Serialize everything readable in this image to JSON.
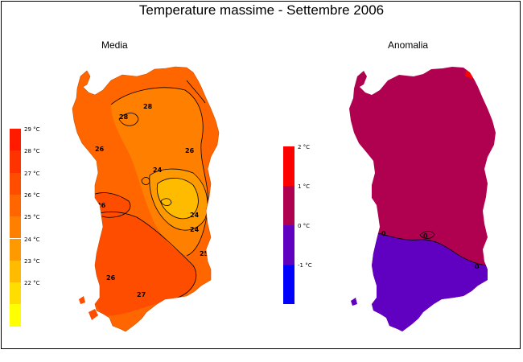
{
  "title": "Temperature massime - Settembre 2006",
  "panels": {
    "left": {
      "title": "Media"
    },
    "right": {
      "title": "Anomalia"
    }
  },
  "legend_media": [
    {
      "label": "29 °C",
      "color": "#ff1a00"
    },
    {
      "label": "28 °C",
      "color": "#ff3300"
    },
    {
      "label": "27 °C",
      "color": "#ff4d00"
    },
    {
      "label": "26 °C",
      "color": "#ff6600"
    },
    {
      "label": "25 °C",
      "color": "#ff8000"
    },
    {
      "label": "24 °C",
      "color": "#ff9900"
    },
    {
      "label": "23 °C",
      "color": "#ffbb00"
    },
    {
      "label": "22 °C",
      "color": "#ffdd00"
    },
    {
      "label": "",
      "color": "#ffff00"
    }
  ],
  "legend_anomalia": [
    {
      "label": "2 °C",
      "color": "#ff0000"
    },
    {
      "label": "1 °C",
      "color": "#b00050"
    },
    {
      "label": "0 °C",
      "color": "#6000c0"
    },
    {
      "label": "-1 °C",
      "color": "#0000ff"
    }
  ],
  "contour_labels_media": [
    "28",
    "26",
    "26",
    "26",
    "24",
    "24",
    "24",
    "25",
    "27",
    "26",
    "28"
  ],
  "contour_labels_anomalia": [
    "0",
    "0",
    "0"
  ],
  "colors": {
    "media_base": "#ff6600",
    "media_27": "#ff4d00",
    "media_25": "#ff8000",
    "media_24": "#ff9900",
    "media_23": "#ffbb00",
    "media_22": "#ffdd00",
    "anomalia_pos": "#b00050",
    "anomalia_neg": "#6000c0",
    "anomalia_hot": "#ff0000"
  }
}
